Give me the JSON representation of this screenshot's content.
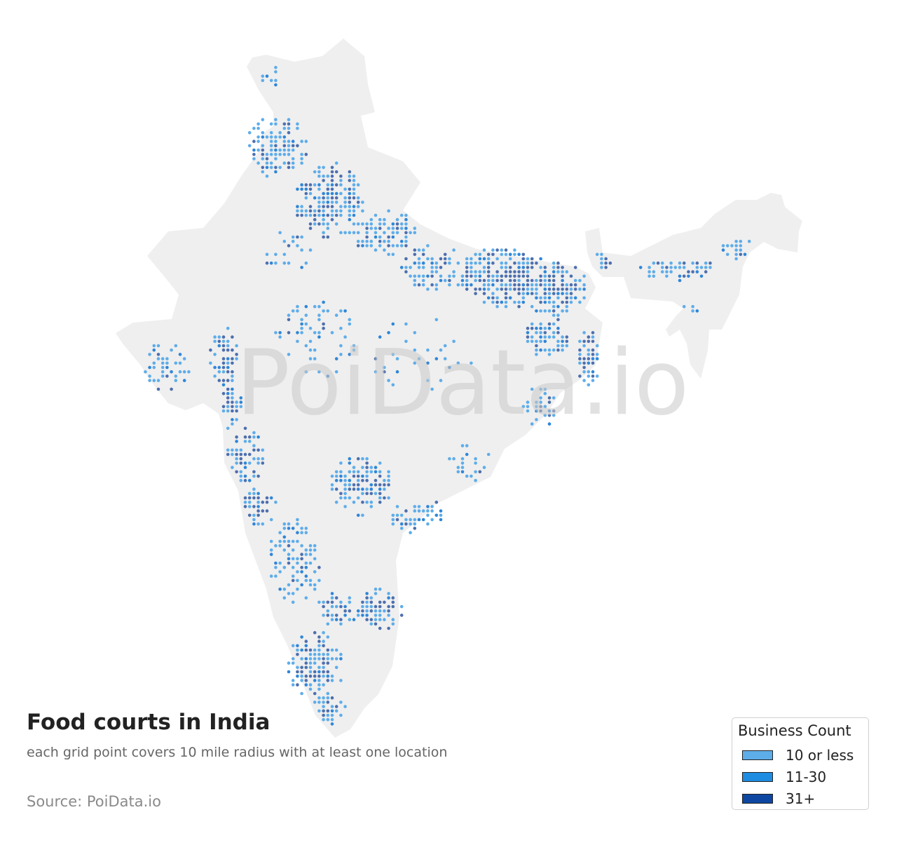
{
  "title": "Food courts in India",
  "subtitle": "each grid point covers 10 mile radius with at least one location",
  "source": "Source: PoiData.io",
  "watermark": "PoiData.io",
  "colors": {
    "land": "#efefef",
    "low": "#5eadea",
    "mid": "#2f86d8",
    "high": "#4d6fae",
    "watermark": "#c8c8c8"
  },
  "legend": {
    "title": "Business Count",
    "items": [
      {
        "label": "10 or less",
        "color": "#5dade8"
      },
      {
        "label": "11-30",
        "color": "#1e8ce0"
      },
      {
        "label": "31+",
        "color": "#0d47a1"
      }
    ]
  }
}
